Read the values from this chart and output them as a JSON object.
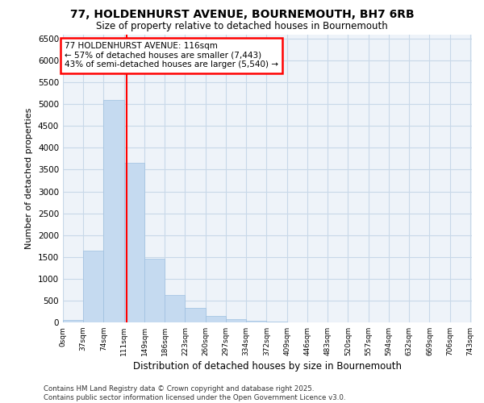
{
  "title_line1": "77, HOLDENHURST AVENUE, BOURNEMOUTH, BH7 6RB",
  "title_line2": "Size of property relative to detached houses in Bournemouth",
  "xlabel": "Distribution of detached houses by size in Bournemouth",
  "ylabel": "Number of detached properties",
  "bar_color": "#c5daf0",
  "bar_edge_color": "#9ec0e0",
  "grid_color": "#c8d8e8",
  "background_color": "#eef3f9",
  "vline_x": 116,
  "vline_color": "red",
  "annotation_text": "77 HOLDENHURST AVENUE: 116sqm\n← 57% of detached houses are smaller (7,443)\n43% of semi-detached houses are larger (5,540) →",
  "annotation_box_color": "white",
  "annotation_box_edge": "red",
  "bin_starts": [
    0,
    37,
    74,
    111,
    148,
    185,
    222,
    259,
    296,
    333,
    370,
    407,
    444,
    481,
    518,
    555,
    592,
    629,
    666,
    703
  ],
  "bin_width": 37,
  "bar_heights": [
    50,
    1650,
    5100,
    3650,
    1450,
    625,
    325,
    150,
    75,
    30,
    10,
    5,
    2,
    1,
    0,
    0,
    0,
    0,
    0,
    0
  ],
  "ylim": [
    0,
    6600
  ],
  "yticks": [
    0,
    500,
    1000,
    1500,
    2000,
    2500,
    3000,
    3500,
    4000,
    4500,
    5000,
    5500,
    6000,
    6500
  ],
  "footer_text": "Contains HM Land Registry data © Crown copyright and database right 2025.\nContains public sector information licensed under the Open Government Licence v3.0.",
  "tick_labels": [
    "0sqm",
    "37sqm",
    "74sqm",
    "111sqm",
    "149sqm",
    "186sqm",
    "223sqm",
    "260sqm",
    "297sqm",
    "334sqm",
    "372sqm",
    "409sqm",
    "446sqm",
    "483sqm",
    "520sqm",
    "557sqm",
    "594sqm",
    "632sqm",
    "669sqm",
    "706sqm",
    "743sqm"
  ],
  "tick_positions": [
    0,
    37,
    74,
    111,
    148,
    185,
    222,
    259,
    296,
    333,
    370,
    407,
    444,
    481,
    518,
    555,
    592,
    629,
    666,
    703,
    740
  ]
}
